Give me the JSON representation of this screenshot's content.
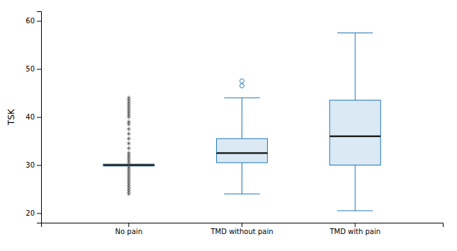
{
  "chart_data": {
    "type": "box",
    "ylabel": "TSK",
    "categories": [
      "No pain",
      "TMD without pain",
      "TMD with pain"
    ],
    "boxes": [
      {
        "q1": 29.8,
        "median": 30.0,
        "q3": 30.2,
        "whisker_low": 30.0,
        "whisker_high": 30.0,
        "outliers_asterisk": [
          44.0,
          43.5,
          43.0,
          42.5,
          42.0,
          41.5,
          41.0,
          40.5,
          40.0,
          39.0,
          38.5,
          37.5,
          36.5,
          35.5,
          34.5,
          33.5,
          32.5,
          32.0,
          31.5,
          31.0,
          30.5,
          29.5,
          29.0,
          28.5,
          28.0,
          27.5,
          27.0,
          26.5,
          26.0,
          25.5,
          25.0,
          24.5,
          24.0
        ],
        "outliers_circle": []
      },
      {
        "q1": 30.5,
        "median": 32.5,
        "q3": 35.5,
        "whisker_low": 24.0,
        "whisker_high": 44.0,
        "outliers_asterisk": [],
        "outliers_circle": [
          46.5,
          47.5
        ]
      },
      {
        "q1": 30.0,
        "median": 36.0,
        "q3": 43.5,
        "whisker_low": 20.5,
        "whisker_high": 57.5,
        "outliers_asterisk": [],
        "outliers_circle": []
      }
    ],
    "ylim": [
      18,
      62
    ],
    "yticks": [
      20,
      30,
      40,
      50,
      60
    ],
    "grid": false
  }
}
